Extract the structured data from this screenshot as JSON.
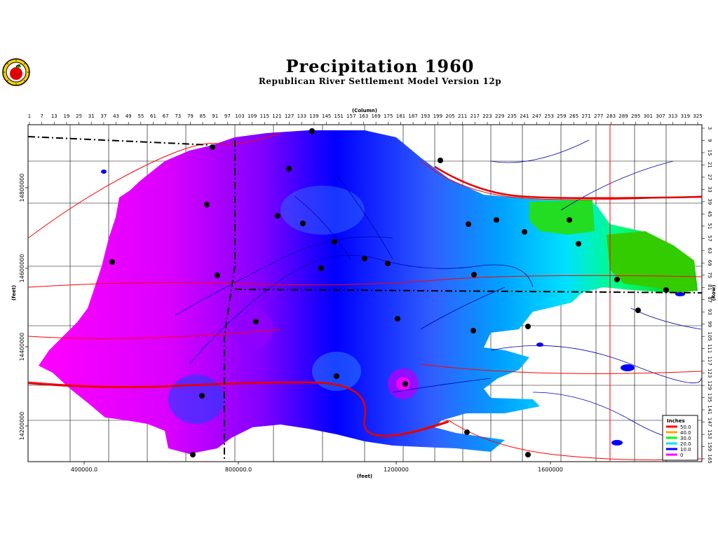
{
  "title": "Precipitation 1960",
  "subtitle": "Republican River Settlement Model Version 12p",
  "logo": {
    "icon": "apple-seal-icon"
  },
  "axes": {
    "column_label": "(Column)",
    "row_label": "(Row)",
    "x_feet_label": "(feet)",
    "y_feet_label": "(feet)",
    "column_ticks": [
      "1",
      "7",
      "13",
      "19",
      "25",
      "31",
      "37",
      "43",
      "49",
      "55",
      "61",
      "67",
      "73",
      "79",
      "85",
      "91",
      "97",
      "103",
      "109",
      "115",
      "121",
      "127",
      "133",
      "139",
      "145",
      "151",
      "157",
      "163",
      "169",
      "175",
      "181",
      "187",
      "193",
      "199",
      "205",
      "211",
      "217",
      "223",
      "229",
      "235",
      "241",
      "247",
      "253",
      "259",
      "265",
      "271",
      "277",
      "283",
      "289",
      "295",
      "301",
      "307",
      "313",
      "319",
      "325"
    ],
    "row_ticks": [
      "3",
      "9",
      "15",
      "21",
      "27",
      "33",
      "39",
      "45",
      "51",
      "57",
      "63",
      "69",
      "75",
      "81",
      "87",
      "93",
      "99",
      "105",
      "111",
      "117",
      "123",
      "129",
      "135",
      "141",
      "147",
      "153",
      "159",
      "165"
    ],
    "x_feet_ticks": [
      "400000.0",
      "800000.0",
      "1200000",
      "1600000"
    ],
    "y_feet_ticks": [
      "14800000",
      "14600000",
      "14400000",
      "14200000"
    ]
  },
  "legend": {
    "title": "Inches",
    "entries": [
      {
        "label": "50.0",
        "color": "#ff0000"
      },
      {
        "label": "40.0",
        "color": "#ffa500"
      },
      {
        "label": "30.0",
        "color": "#00ff00"
      },
      {
        "label": "20.0",
        "color": "#00e0ff"
      },
      {
        "label": "10.0",
        "color": "#0000ff"
      },
      {
        "label": "0",
        "color": "#ff00ff"
      }
    ]
  }
}
